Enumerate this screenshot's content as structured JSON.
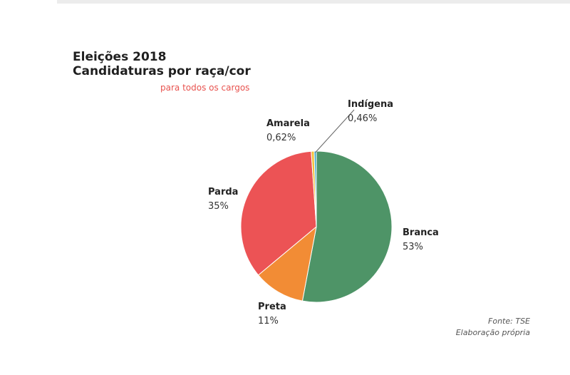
{
  "chart_data": {
    "type": "pie",
    "title": "Eleições 2018",
    "title_line2": "Candidaturas por raça/cor",
    "subtitle": "para todos os cargos",
    "start_angle_deg": 0,
    "direction": "clockwise",
    "slices": [
      {
        "label": "Branca",
        "value": 53,
        "display": "53%",
        "color": "#4e9467"
      },
      {
        "label": "Preta",
        "value": 11,
        "display": "11%",
        "color": "#f28c35"
      },
      {
        "label": "Parda",
        "value": 35,
        "display": "35%",
        "color": "#ec5355"
      },
      {
        "label": "Amarela",
        "value": 0.62,
        "display": "0,62%",
        "color": "#f2c037"
      },
      {
        "label": "Indígena",
        "value": 0.46,
        "display": "0,46%",
        "color": "#3ba7c9"
      }
    ]
  },
  "footer": {
    "source": "Fonte: TSE",
    "note": "Elaboração própria"
  }
}
